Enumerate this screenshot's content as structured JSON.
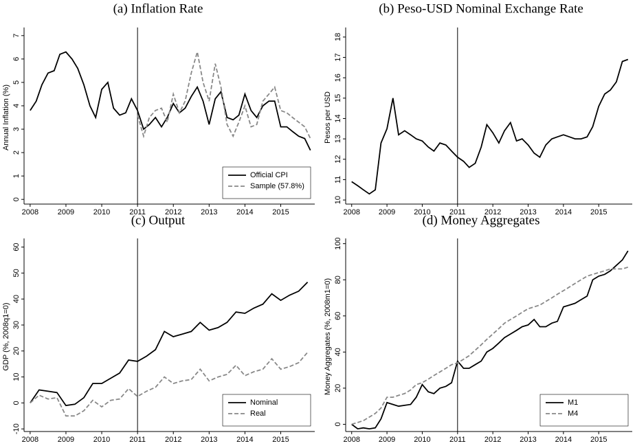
{
  "chart_data": [
    {
      "type": "line",
      "title": "(a) Inflation Rate",
      "y_label": "Annual Inflation (%)",
      "x": [
        2008,
        2008.17,
        2008.33,
        2008.5,
        2008.67,
        2008.83,
        2009,
        2009.17,
        2009.33,
        2009.5,
        2009.67,
        2009.83,
        2010,
        2010.17,
        2010.33,
        2010.5,
        2010.67,
        2010.83,
        2011,
        2011.17,
        2011.33,
        2011.5,
        2011.67,
        2011.83,
        2012,
        2012.17,
        2012.33,
        2012.5,
        2012.67,
        2012.83,
        2013,
        2013.17,
        2013.33,
        2013.5,
        2013.67,
        2013.83,
        2014,
        2014.17,
        2014.33,
        2014.5,
        2014.67,
        2014.83,
        2015,
        2015.17,
        2015.33,
        2015.5,
        2015.67,
        2015.83
      ],
      "series": [
        {
          "name": "Official CPI",
          "color": "#000000",
          "dash": false,
          "values": [
            3.8,
            4.2,
            4.9,
            5.4,
            5.5,
            6.2,
            6.3,
            6.0,
            5.6,
            4.9,
            4.0,
            3.5,
            4.7,
            5.0,
            3.9,
            3.6,
            3.7,
            4.3,
            3.8,
            3.0,
            3.2,
            3.5,
            3.1,
            3.5,
            4.1,
            3.7,
            3.9,
            4.4,
            4.8,
            4.2,
            3.2,
            4.3,
            4.6,
            3.5,
            3.4,
            3.6,
            4.5,
            3.8,
            3.5,
            4.0,
            4.2,
            4.2,
            3.1,
            3.1,
            2.9,
            2.7,
            2.6,
            2.1
          ]
        },
        {
          "name": "Sample (57.8%)",
          "color": "#888888",
          "dash": true,
          "values": [
            null,
            null,
            null,
            null,
            null,
            null,
            null,
            null,
            null,
            null,
            null,
            null,
            null,
            null,
            null,
            null,
            null,
            null,
            3.6,
            2.7,
            3.5,
            3.8,
            3.9,
            3.3,
            4.5,
            3.7,
            4.2,
            5.4,
            6.3,
            5.0,
            4.2,
            5.8,
            4.8,
            3.2,
            2.7,
            3.3,
            4.0,
            3.1,
            3.2,
            4.2,
            4.5,
            4.8,
            3.8,
            3.7,
            3.5,
            3.3,
            3.1,
            2.6
          ]
        }
      ],
      "xlim": [
        2007.83,
        2015.95
      ],
      "xticks": [
        2008,
        2009,
        2010,
        2011,
        2012,
        2013,
        2014,
        2015
      ],
      "ylim": [
        -0.2,
        7.2
      ],
      "yticks": [
        0,
        1,
        2,
        3,
        4,
        5,
        6,
        7
      ],
      "vline": 2011,
      "legend": "bottom-right"
    },
    {
      "type": "line",
      "title": "(b) Peso-USD Nominal Exchange Rate",
      "y_label": "Pesos per USD",
      "x": [
        2008,
        2008.17,
        2008.33,
        2008.5,
        2008.67,
        2008.83,
        2009,
        2009.17,
        2009.33,
        2009.5,
        2009.67,
        2009.83,
        2010,
        2010.17,
        2010.33,
        2010.5,
        2010.67,
        2010.83,
        2011,
        2011.17,
        2011.33,
        2011.5,
        2011.67,
        2011.83,
        2012,
        2012.17,
        2012.33,
        2012.5,
        2012.67,
        2012.83,
        2013,
        2013.17,
        2013.33,
        2013.5,
        2013.67,
        2013.83,
        2014,
        2014.17,
        2014.33,
        2014.5,
        2014.67,
        2014.83,
        2015,
        2015.17,
        2015.33,
        2015.5,
        2015.67,
        2015.83
      ],
      "series": [
        {
          "color": "#000000",
          "dash": false,
          "values": [
            10.9,
            10.7,
            10.5,
            10.3,
            10.5,
            12.8,
            13.5,
            15.0,
            13.2,
            13.4,
            13.2,
            13.0,
            12.9,
            12.6,
            12.4,
            12.8,
            12.7,
            12.4,
            12.1,
            11.9,
            11.6,
            11.8,
            12.6,
            13.7,
            13.3,
            12.8,
            13.4,
            13.8,
            12.9,
            13.0,
            12.7,
            12.3,
            12.1,
            12.7,
            13.0,
            13.1,
            13.2,
            13.1,
            13.0,
            13.0,
            13.1,
            13.6,
            14.6,
            15.2,
            15.4,
            15.8,
            16.8,
            16.9
          ]
        }
      ],
      "xlim": [
        2007.83,
        2015.95
      ],
      "xticks": [
        2008,
        2009,
        2010,
        2011,
        2012,
        2013,
        2014,
        2015
      ],
      "ylim": [
        9.8,
        18.3
      ],
      "yticks": [
        10,
        11,
        12,
        13,
        14,
        15,
        16,
        17,
        18
      ],
      "vline": 2011
    },
    {
      "type": "line",
      "title": "(c) Output",
      "y_label": "GDP (%, 2008q1=0)",
      "x": [
        2008,
        2008.25,
        2008.5,
        2008.75,
        2009,
        2009.25,
        2009.5,
        2009.75,
        2010,
        2010.25,
        2010.5,
        2010.75,
        2011,
        2011.25,
        2011.5,
        2011.75,
        2012,
        2012.25,
        2012.5,
        2012.75,
        2013,
        2013.25,
        2013.5,
        2013.75,
        2014,
        2014.25,
        2014.5,
        2014.75,
        2015,
        2015.25,
        2015.5,
        2015.75
      ],
      "series": [
        {
          "name": "Nominal",
          "color": "#000000",
          "dash": false,
          "values": [
            0,
            5,
            4.5,
            4,
            -1,
            -0.5,
            2,
            7.5,
            7.5,
            9.5,
            11.5,
            16.5,
            16,
            18,
            20.5,
            27.5,
            25.5,
            26.5,
            27.5,
            31,
            28,
            29,
            31,
            35,
            34.5,
            36.5,
            38,
            42,
            39.5,
            41.5,
            43,
            46.5
          ]
        },
        {
          "name": "Real",
          "color": "#888888",
          "dash": true,
          "values": [
            0,
            3,
            1.5,
            2,
            -5,
            -5,
            -3,
            1,
            -1.5,
            1,
            1.5,
            5.5,
            2.5,
            4.5,
            6,
            10,
            7.5,
            8.5,
            9,
            13,
            8.5,
            10,
            11,
            14.5,
            10.5,
            12,
            13,
            17,
            13,
            14,
            15.5,
            19.5
          ]
        }
      ],
      "xlim": [
        2007.83,
        2015.95
      ],
      "xticks": [
        2008,
        2009,
        2010,
        2011,
        2012,
        2013,
        2014,
        2015
      ],
      "ylim": [
        -11,
        62
      ],
      "yticks": [
        -10,
        0,
        10,
        20,
        30,
        40,
        50,
        60
      ],
      "vline": 2011,
      "legend": "bottom-right"
    },
    {
      "type": "line",
      "title": "(d) Money Aggregates",
      "y_label": "Money Aggregates (%, 2008m1=0)",
      "x": [
        2008,
        2008.17,
        2008.33,
        2008.5,
        2008.67,
        2008.83,
        2009,
        2009.17,
        2009.33,
        2009.5,
        2009.67,
        2009.83,
        2010,
        2010.17,
        2010.33,
        2010.5,
        2010.67,
        2010.83,
        2011,
        2011.17,
        2011.33,
        2011.5,
        2011.67,
        2011.83,
        2012,
        2012.17,
        2012.33,
        2012.5,
        2012.67,
        2012.83,
        2013,
        2013.17,
        2013.33,
        2013.5,
        2013.67,
        2013.83,
        2014,
        2014.17,
        2014.33,
        2014.5,
        2014.67,
        2014.83,
        2015,
        2015.17,
        2015.33,
        2015.5,
        2015.67,
        2015.83
      ],
      "series": [
        {
          "name": "M1",
          "color": "#000000",
          "dash": false,
          "values": [
            0,
            -2.5,
            -2,
            -2.5,
            -2,
            3,
            12,
            11,
            10,
            10.5,
            11,
            15,
            22,
            18,
            17,
            20,
            21,
            23,
            35,
            31,
            31,
            33,
            35,
            40,
            42,
            45,
            48,
            50,
            52,
            54,
            55,
            58,
            54,
            54,
            56,
            57,
            65,
            66,
            67,
            69,
            71,
            80,
            82,
            83,
            85,
            88,
            91,
            96
          ]
        },
        {
          "name": "M4",
          "color": "#888888",
          "dash": true,
          "values": [
            0,
            1,
            2,
            4,
            6,
            9,
            15,
            15,
            16,
            17,
            19,
            22,
            23,
            25,
            27,
            29,
            31,
            33,
            34,
            36,
            38,
            41,
            44,
            47,
            50,
            53,
            56,
            58,
            60,
            62,
            64,
            65,
            66,
            68,
            70,
            72,
            74,
            76,
            78,
            80,
            82,
            83,
            84,
            85,
            86,
            86,
            86,
            87
          ]
        }
      ],
      "xlim": [
        2007.83,
        2015.95
      ],
      "xticks": [
        2008,
        2009,
        2010,
        2011,
        2012,
        2013,
        2014,
        2015
      ],
      "ylim": [
        -4,
        101
      ],
      "yticks": [
        0,
        20,
        40,
        60,
        80,
        100
      ],
      "vline": 2011,
      "legend": "bottom-right"
    }
  ]
}
